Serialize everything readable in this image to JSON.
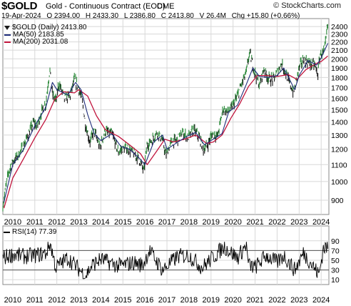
{
  "header": {
    "symbol": "$GOLD",
    "description": "Gold - Continuous Contract (EOD)",
    "exchange": "CME",
    "credit": "© StockCharts.com"
  },
  "quote": {
    "date": "19-Apr-2024",
    "open": "O 2394.00",
    "high": "H 2433.30",
    "low": "L 2386.80",
    "close": "C 2413.80",
    "volume": "V 26.4M",
    "change": "Chg +15.80 (+0.66%)"
  },
  "legend": {
    "price": "$GOLD (Daily) 2413.80",
    "ma50": "MA(50) 2183.85",
    "ma200": "MA(200) 2031.08",
    "rsi": "RSI(14) 77.39"
  },
  "colors": {
    "bar_up": "#1a1a1a",
    "bar_fill": "#2e8b3d",
    "ma50": "#1f2d7a",
    "ma200": "#c0143c",
    "grid": "#d8d8d8",
    "rsi": "#000000"
  },
  "chart_data": [
    {
      "type": "line",
      "title": "$GOLD (Daily)",
      "scale": "log",
      "ylim": [
        830,
        2470
      ],
      "xlim": [
        2009.55,
        2024.35
      ],
      "x_ticks": [
        "2010",
        "2011",
        "2012",
        "2013",
        "2014",
        "2015",
        "2016",
        "2017",
        "2018",
        "2019",
        "2020",
        "2021",
        "2022",
        "2023",
        "2024"
      ],
      "y_ticks": [
        900,
        1000,
        1100,
        1200,
        1300,
        1400,
        1500,
        1600,
        1700,
        1800,
        1900,
        2000,
        2100,
        2200,
        2300,
        2400
      ],
      "grid": true,
      "legend_position": "top-left",
      "series": [
        {
          "name": "$GOLD",
          "x": [
            2009.55,
            2009.8,
            2010.0,
            2010.2,
            2010.45,
            2010.7,
            2010.95,
            2011.1,
            2011.3,
            2011.5,
            2011.68,
            2011.8,
            2011.95,
            2012.1,
            2012.35,
            2012.6,
            2012.8,
            2013.0,
            2013.15,
            2013.3,
            2013.5,
            2013.7,
            2013.95,
            2014.2,
            2014.5,
            2014.8,
            2014.95,
            2015.2,
            2015.5,
            2015.75,
            2015.95,
            2016.1,
            2016.3,
            2016.55,
            2016.8,
            2016.95,
            2017.2,
            2017.45,
            2017.7,
            2017.95,
            2018.2,
            2018.45,
            2018.65,
            2018.85,
            2019.05,
            2019.3,
            2019.55,
            2019.75,
            2019.95,
            2020.2,
            2020.4,
            2020.6,
            2020.75,
            2020.95,
            2021.2,
            2021.4,
            2021.6,
            2021.85,
            2022.0,
            2022.2,
            2022.5,
            2022.75,
            2023.0,
            2023.2,
            2023.45,
            2023.7,
            2023.85,
            2023.95,
            2024.15,
            2024.3
          ],
          "values": [
            870,
            1050,
            1120,
            1150,
            1210,
            1300,
            1400,
            1360,
            1480,
            1550,
            1880,
            1640,
            1580,
            1740,
            1600,
            1620,
            1780,
            1690,
            1580,
            1380,
            1250,
            1330,
            1210,
            1330,
            1310,
            1180,
            1200,
            1210,
            1170,
            1130,
            1060,
            1230,
            1260,
            1320,
            1260,
            1160,
            1250,
            1260,
            1320,
            1280,
            1340,
            1290,
            1200,
            1230,
            1310,
            1290,
            1510,
            1480,
            1520,
            1620,
            1740,
            1850,
            2070,
            1880,
            1720,
            1890,
            1790,
            1780,
            1850,
            1950,
            1780,
            1650,
            1900,
            2000,
            1950,
            1930,
            1830,
            2050,
            2080,
            2413.8
          ]
        },
        {
          "name": "MA(50)",
          "x": [
            2009.6,
            2010.0,
            2010.5,
            2011.0,
            2011.5,
            2011.8,
            2012.0,
            2012.5,
            2012.85,
            2013.1,
            2013.4,
            2013.7,
            2014.0,
            2014.5,
            2014.9,
            2015.3,
            2015.75,
            2016.0,
            2016.4,
            2016.8,
            2017.0,
            2017.5,
            2017.9,
            2018.3,
            2018.7,
            2019.0,
            2019.5,
            2019.8,
            2020.2,
            2020.6,
            2020.9,
            2021.2,
            2021.6,
            2022.0,
            2022.3,
            2022.8,
            2023.0,
            2023.4,
            2023.8,
            2024.0,
            2024.3
          ],
          "values": [
            890,
            1100,
            1200,
            1370,
            1520,
            1750,
            1680,
            1630,
            1750,
            1680,
            1460,
            1310,
            1260,
            1310,
            1220,
            1200,
            1140,
            1100,
            1250,
            1300,
            1200,
            1250,
            1290,
            1320,
            1230,
            1260,
            1310,
            1480,
            1540,
            1730,
            1900,
            1810,
            1800,
            1820,
            1900,
            1680,
            1820,
            1980,
            1930,
            2010,
            2183.85
          ]
        },
        {
          "name": "MA(200)",
          "x": [
            2009.6,
            2010.0,
            2010.5,
            2011.0,
            2011.5,
            2011.9,
            2012.3,
            2012.8,
            2013.0,
            2013.4,
            2013.8,
            2014.2,
            2014.8,
            2015.3,
            2015.8,
            2016.1,
            2016.5,
            2016.9,
            2017.3,
            2017.8,
            2018.3,
            2018.8,
            2019.1,
            2019.5,
            2019.9,
            2020.3,
            2020.7,
            2021.1,
            2021.5,
            2022.0,
            2022.5,
            2022.9,
            2023.3,
            2023.8,
            2024.0,
            2024.3
          ],
          "values": [
            860,
            1020,
            1140,
            1280,
            1420,
            1590,
            1660,
            1650,
            1680,
            1620,
            1450,
            1340,
            1290,
            1230,
            1170,
            1100,
            1180,
            1270,
            1250,
            1270,
            1300,
            1240,
            1250,
            1300,
            1430,
            1550,
            1710,
            1820,
            1820,
            1810,
            1830,
            1780,
            1880,
            1950,
            1970,
            2031.08
          ]
        }
      ]
    },
    {
      "type": "line",
      "title": "RSI(14)",
      "ylim": [
        0,
        100
      ],
      "y_ticks": [
        10,
        30,
        50,
        70,
        90
      ],
      "reference_lines": [
        30,
        70
      ],
      "x_ticks": [
        "2010",
        "2011",
        "2012",
        "2013",
        "2014",
        "2015",
        "2016",
        "2017",
        "2018",
        "2019",
        "2020",
        "2021",
        "2022",
        "2023",
        "2024"
      ],
      "series": [
        {
          "name": "RSI(14)",
          "x": [
            2009.55,
            2010.0,
            2010.5,
            2011.0,
            2011.5,
            2011.7,
            2011.95,
            2012.5,
            2013.3,
            2013.6,
            2014.0,
            2014.8,
            2015.5,
            2015.9,
            2016.2,
            2016.8,
            2017.5,
            2018.0,
            2018.6,
            2019.3,
            2019.6,
            2020.2,
            2020.6,
            2020.7,
            2021.0,
            2021.5,
            2022.0,
            2022.3,
            2022.8,
            2023.2,
            2023.6,
            2023.9,
            2024.1,
            2024.3
          ],
          "values": [
            55,
            62,
            58,
            60,
            64,
            85,
            35,
            55,
            18,
            40,
            52,
            38,
            45,
            40,
            70,
            30,
            58,
            60,
            35,
            65,
            78,
            55,
            82,
            40,
            35,
            60,
            45,
            60,
            30,
            65,
            40,
            20,
            75,
            77.39
          ]
        }
      ]
    }
  ]
}
